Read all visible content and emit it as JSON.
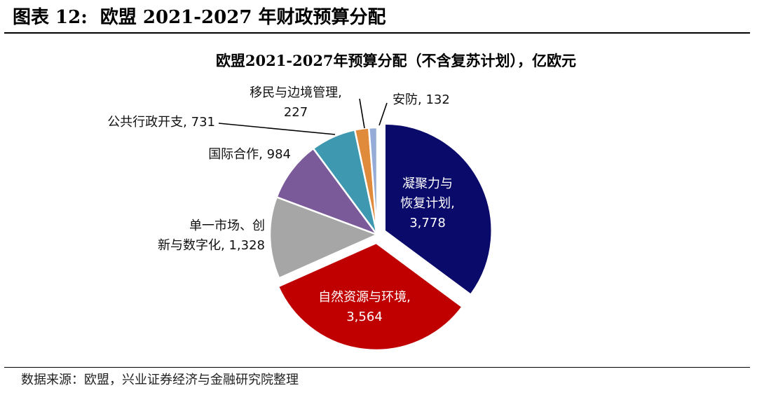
{
  "header": {
    "figure_no": "图表 12:",
    "title": "欧盟 2021-2027 年财政预算分配"
  },
  "footer": {
    "source": "数据来源：欧盟，兴业证券经济与金融研究院整理"
  },
  "chart_data": {
    "type": "pie",
    "title": "欧盟2021-2027年预算分配（不含复苏计划），亿欧元",
    "categories": [
      "凝聚力与恢复计划",
      "自然资源与环境",
      "单一市场、创新与数字化",
      "国际合作",
      "公共行政开支",
      "移民与边境管理",
      "安防"
    ],
    "values": [
      3778,
      3564,
      1328,
      984,
      731,
      227,
      132
    ],
    "value_labels": [
      "3,778",
      "3,564",
      "1,328",
      "984",
      "731",
      "227",
      "132"
    ],
    "colors": [
      "#0a0a6b",
      "#c00000",
      "#a6a6a6",
      "#7b5a9a",
      "#3d98b0",
      "#e08a3c",
      "#94acd7"
    ],
    "start_angle_deg": 0,
    "direction": "clockwise",
    "exploded_slices": [
      0,
      1
    ],
    "legend": "none"
  }
}
